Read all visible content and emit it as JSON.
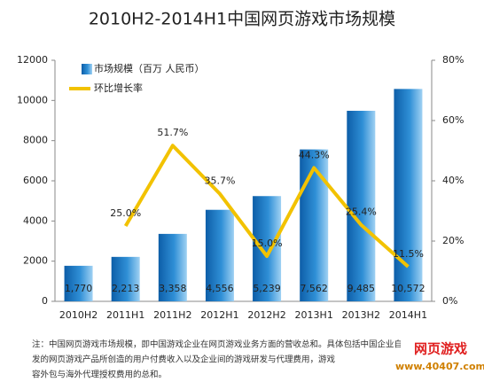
{
  "chart_data": {
    "type": "bar-line",
    "title": "2010H2-2014H1中国网页游戏市场规模",
    "categories": [
      "2010H2",
      "2011H1",
      "2011H2",
      "2012H1",
      "2012H2",
      "2013H1",
      "2013H2",
      "2014H1"
    ],
    "series": [
      {
        "name": "市场规模（百万 人民币）",
        "type": "bar",
        "color": "#1f7fc4",
        "values": [
          1770,
          2213,
          3358,
          4556,
          5239,
          7562,
          9485,
          10572
        ],
        "value_labels": [
          "1,770",
          "2,213",
          "3,358",
          "4,556",
          "5,239",
          "7,562",
          "9,485",
          "10,572"
        ]
      },
      {
        "name": "环比增长率",
        "type": "line",
        "color": "#f2c200",
        "axis": "y2",
        "values": [
          null,
          25.0,
          51.7,
          35.7,
          15.0,
          44.3,
          25.4,
          11.5
        ],
        "value_labels": [
          null,
          "25.0%",
          "51.7%",
          "35.7%",
          "15.0%",
          "44.3%",
          "25.4%",
          "11.5%"
        ]
      }
    ],
    "ylim": [
      0,
      12000
    ],
    "yticks": [
      0,
      2000,
      4000,
      6000,
      8000,
      10000,
      12000
    ],
    "y2lim": [
      0,
      80
    ],
    "y2ticks": [
      {
        "value": 0,
        "label": "0%"
      },
      {
        "value": 20,
        "label": "20%"
      },
      {
        "value": 40,
        "label": "40%"
      },
      {
        "value": 60,
        "label": "60%"
      },
      {
        "value": 80,
        "label": "80%"
      }
    ],
    "legend": "top-left",
    "note": [
      "注：中国网页游戏市场规模，即中国游戏企业在网页游戏业务方面的营收总和。具体包括中国企业自主研",
      "发的网页游戏产品所创造的用户付费收入以及企业间的游戏研发与代理费用，游戏",
      "容外包与海外代理授权费用的总和。"
    ],
    "logo": [
      "网页游戏",
      "www.40407.com"
    ]
  }
}
